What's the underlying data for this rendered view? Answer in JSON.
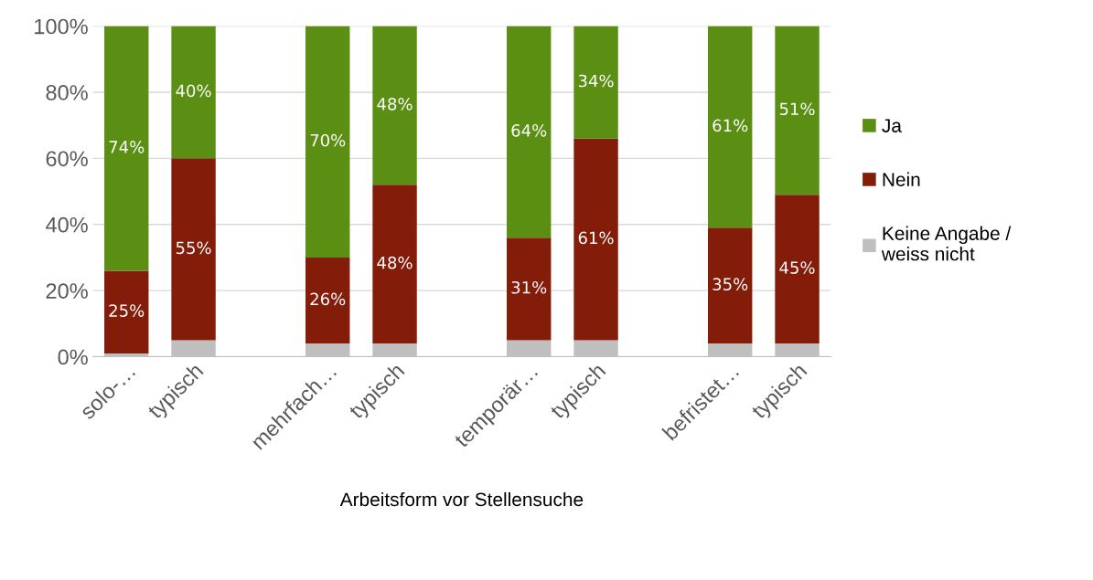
{
  "chart_data": {
    "type": "bar",
    "stacked": true,
    "xlabel": "Arbeitsform vor Stellensuche",
    "categories": [
      "solo-…",
      "typisch",
      null,
      "mehrfach…",
      "typisch",
      null,
      "temporär…",
      "typisch",
      null,
      "befristet…",
      "typisch"
    ],
    "series": [
      {
        "name": "Keine Angabe / weiss nicht",
        "color": "#bfbfbf",
        "values": [
          1,
          5,
          null,
          4,
          4,
          null,
          5,
          5,
          null,
          4,
          4
        ]
      },
      {
        "name": "Nein",
        "color": "#841c0a",
        "values": [
          25,
          55,
          null,
          26,
          48,
          null,
          31,
          61,
          null,
          35,
          45
        ],
        "value_labels": [
          "25%",
          "55%",
          null,
          "26%",
          "48%",
          null,
          "31%",
          "61%",
          null,
          "35%",
          "45%"
        ]
      },
      {
        "name": "Ja",
        "color": "#5a8f14",
        "values": [
          74,
          40,
          null,
          70,
          48,
          null,
          64,
          34,
          null,
          61,
          51
        ],
        "value_labels": [
          "74%",
          "40%",
          null,
          "70%",
          "48%",
          null,
          "64%",
          "34%",
          null,
          "61%",
          "51%"
        ]
      }
    ],
    "ylim": [
      0,
      100
    ],
    "yticks": [
      {
        "value": 0,
        "label": "0%"
      },
      {
        "value": 20,
        "label": "20%"
      },
      {
        "value": 40,
        "label": "40%"
      },
      {
        "value": 60,
        "label": "60%"
      },
      {
        "value": 80,
        "label": "80%"
      },
      {
        "value": 100,
        "label": "100%"
      }
    ],
    "grid": "y",
    "legend": "right"
  }
}
